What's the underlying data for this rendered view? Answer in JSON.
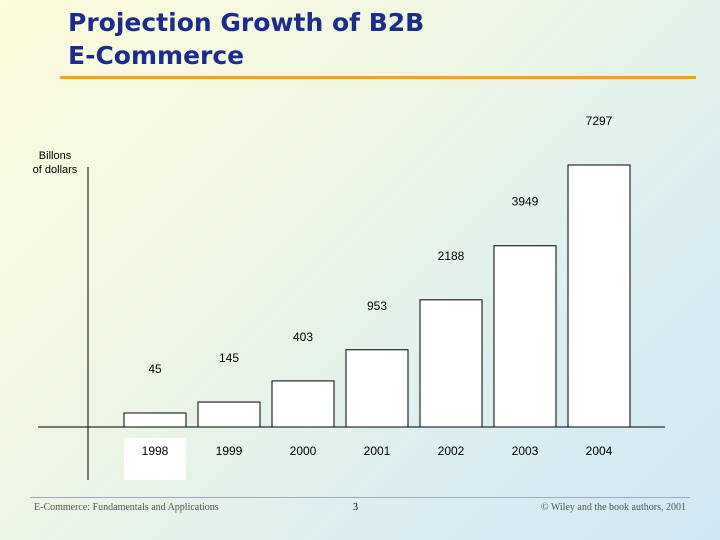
{
  "slide": {
    "title_line1": "Projection Growth of B2B",
    "title_line2": "E-Commerce"
  },
  "chart_data": {
    "type": "bar",
    "title": "Projection Growth of B2B E-Commerce",
    "ylabel_line1": "Billons",
    "ylabel_line2": "of dollars",
    "xlabel": "",
    "categories": [
      "1998",
      "1999",
      "2000",
      "2001",
      "2002",
      "2003",
      "2004"
    ],
    "values": [
      45,
      145,
      403,
      953,
      2188,
      3949,
      7297
    ],
    "value_labels": [
      "45",
      "145",
      "403",
      "953",
      "2188",
      "3949",
      "7297"
    ],
    "ylim": [
      0,
      8000
    ],
    "grid": false,
    "legend": "none",
    "tick_labels_visible": false
  },
  "footer": {
    "left": "E-Commerce: Fundamentals and Applications",
    "center": "3",
    "right": "© Wiley and the book authors, 2001"
  },
  "colors": {
    "title": "#1c2c8c",
    "rule": "#f0a030",
    "bar_fill": "#ffffff",
    "bar_stroke": "#000000"
  }
}
